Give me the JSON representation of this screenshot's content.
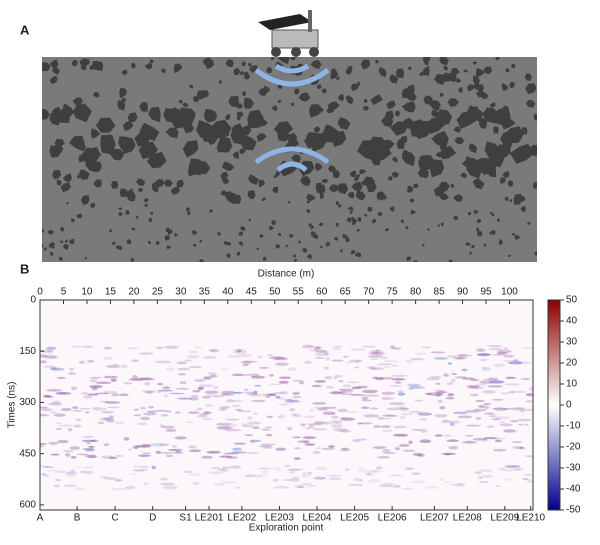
{
  "panels": {
    "a": {
      "label": "A"
    },
    "b": {
      "label": "B"
    }
  },
  "chart_data": {
    "type": "radargram",
    "x_label": "Distance (m)",
    "y_label": "Times (ns)",
    "bottom_label": "Exploration point",
    "xlim": [
      0,
      105
    ],
    "xticks": [
      0,
      5,
      10,
      15,
      20,
      25,
      30,
      35,
      40,
      45,
      50,
      55,
      60,
      65,
      70,
      75,
      80,
      85,
      90,
      95,
      100
    ],
    "ylim": [
      0,
      615
    ],
    "yticks": [
      0,
      150,
      300,
      450,
      600
    ],
    "exploration_points": [
      "A",
      "B",
      "C",
      "D",
      "S1",
      "LE201",
      "LE202",
      "LE203",
      "LE204",
      "LE205",
      "LE206",
      "LE207",
      "LE208",
      "LE209",
      "LE210"
    ],
    "exploration_x": [
      0,
      7.9,
      16,
      24,
      31,
      36,
      43,
      51,
      59,
      67,
      75,
      84,
      91,
      99,
      104.5
    ],
    "zlim": [
      -50,
      50
    ],
    "zticks": [
      50,
      40,
      30,
      20,
      10,
      0,
      -10,
      -20,
      -30,
      -40,
      -50
    ],
    "colormap": [
      "#00008b",
      "#ffffff",
      "#8b0000"
    ]
  }
}
